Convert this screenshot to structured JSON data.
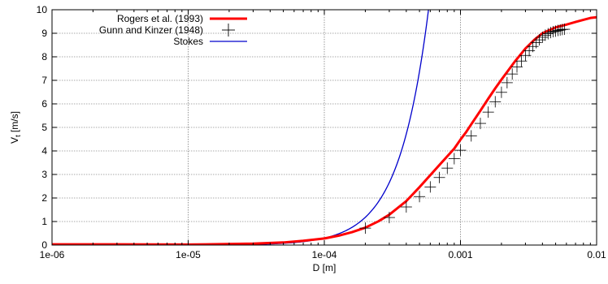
{
  "chart_data": {
    "type": "line",
    "title": "",
    "xlabel": "D [m]",
    "ylabel_main": "V",
    "ylabel_sub": "t",
    "ylabel_unit": " [m/s]",
    "x_scale": "log",
    "xlim": [
      1e-06,
      0.01
    ],
    "ylim": [
      0,
      10
    ],
    "grid": true,
    "legend_position": "top-left",
    "x_ticks": [
      {
        "value": 1e-06,
        "label": "1e-06"
      },
      {
        "value": 1e-05,
        "label": "1e-05"
      },
      {
        "value": 0.0001,
        "label": "1e-04"
      },
      {
        "value": 0.001,
        "label": "0.001"
      },
      {
        "value": 0.01,
        "label": "0.01"
      }
    ],
    "y_ticks": [
      {
        "value": 0,
        "label": "0"
      },
      {
        "value": 1,
        "label": "1"
      },
      {
        "value": 2,
        "label": "2"
      },
      {
        "value": 3,
        "label": "3"
      },
      {
        "value": 4,
        "label": "4"
      },
      {
        "value": 5,
        "label": "5"
      },
      {
        "value": 6,
        "label": "6"
      },
      {
        "value": 7,
        "label": "7"
      },
      {
        "value": 8,
        "label": "8"
      },
      {
        "value": 9,
        "label": "9"
      },
      {
        "value": 10,
        "label": "10"
      }
    ],
    "series": [
      {
        "name": "Rogers et al. (1993)",
        "style": "line",
        "color": "#ff0000",
        "x": [
          1e-06,
          3e-06,
          1e-05,
          3e-05,
          5e-05,
          7e-05,
          0.0001,
          0.00013,
          0.00016,
          0.0002,
          0.00025,
          0.0003,
          0.0004,
          0.0005,
          0.0006,
          0.0007,
          0.0008,
          0.0009,
          0.001,
          0.0011,
          0.0012,
          0.0014,
          0.0016,
          0.0018,
          0.002,
          0.0025,
          0.003,
          0.0035,
          0.004,
          0.005,
          0.006,
          0.007,
          0.008,
          0.009,
          0.01
        ],
        "y": [
          0.03,
          0.03,
          0.02,
          0.06,
          0.11,
          0.18,
          0.28,
          0.41,
          0.55,
          0.74,
          1.01,
          1.29,
          1.87,
          2.46,
          2.97,
          3.4,
          3.77,
          4.1,
          4.48,
          4.8,
          5.13,
          5.71,
          6.22,
          6.66,
          7.03,
          7.79,
          8.35,
          8.73,
          9.0,
          9.25,
          9.37,
          9.48,
          9.57,
          9.65,
          9.68
        ]
      },
      {
        "name": "Gunn and Kinzer (1948)",
        "style": "points",
        "color": "#000000",
        "x": [
          0.0002,
          0.0003,
          0.0004,
          0.0005,
          0.0006,
          0.0007,
          0.0008,
          0.0009,
          0.001,
          0.0012,
          0.0014,
          0.0016,
          0.0018,
          0.002,
          0.0022,
          0.0024,
          0.0026,
          0.0028,
          0.003,
          0.0032,
          0.0034,
          0.0036,
          0.0038,
          0.004,
          0.0042,
          0.0044,
          0.0046,
          0.0048,
          0.005,
          0.0052,
          0.0054,
          0.0056,
          0.0058
        ],
        "y": [
          0.72,
          1.17,
          1.62,
          2.06,
          2.47,
          2.87,
          3.27,
          3.67,
          4.03,
          4.64,
          5.17,
          5.65,
          6.09,
          6.49,
          6.9,
          7.27,
          7.57,
          7.82,
          8.06,
          8.26,
          8.44,
          8.6,
          8.72,
          8.83,
          8.92,
          8.98,
          9.03,
          9.07,
          9.09,
          9.12,
          9.14,
          9.16,
          9.17
        ]
      },
      {
        "name": "Stokes",
        "style": "line",
        "color": "#0000cc",
        "formula_coefficient": 29500000,
        "x": [
          1e-06,
          3e-06,
          1e-05,
          3e-05,
          5e-05,
          7e-05,
          0.0001,
          0.00015,
          0.0002,
          0.00025,
          0.0003,
          0.00035,
          0.0004,
          0.00045,
          0.0005,
          0.00055,
          0.0006
        ],
        "y": [
          3e-05,
          0.00027,
          0.003,
          0.027,
          0.074,
          0.145,
          0.295,
          0.664,
          1.18,
          1.84,
          2.66,
          3.61,
          4.72,
          5.97,
          7.38,
          8.92,
          10.62
        ]
      }
    ]
  }
}
